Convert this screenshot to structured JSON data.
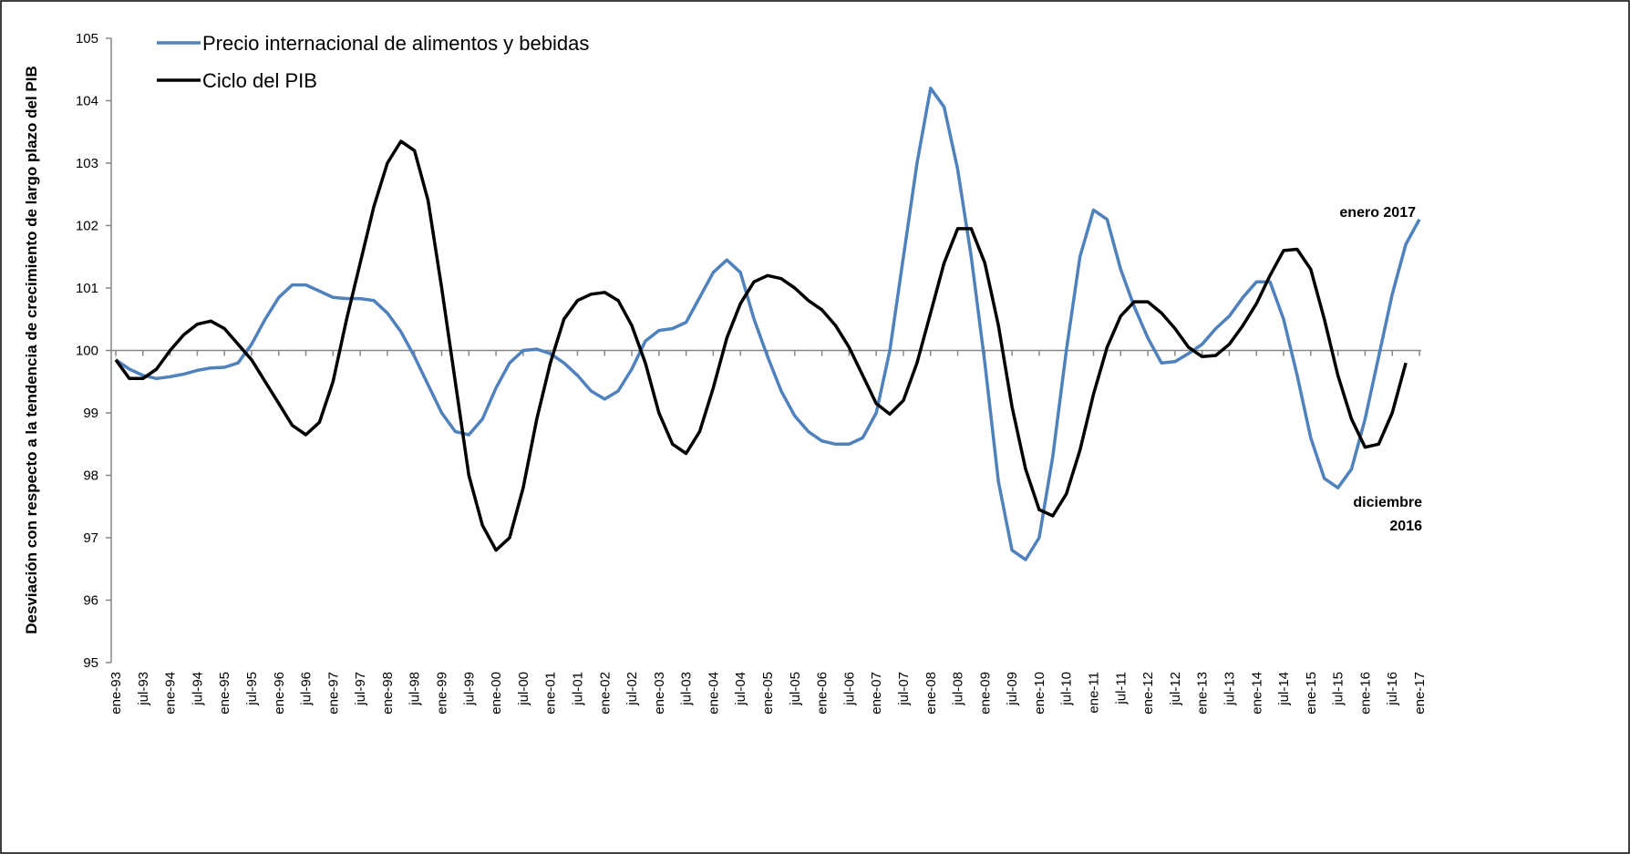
{
  "chart_data": {
    "type": "line",
    "ylabel": "Desviación con respecto a la tendencia de crecimiento de largo plazo del PIB",
    "categories": [
      "ene-93",
      null,
      "jul-93",
      null,
      "ene-94",
      null,
      "jul-94",
      null,
      "ene-95",
      null,
      "jul-95",
      null,
      "ene-96",
      null,
      "jul-96",
      null,
      "ene-97",
      null,
      "jul-97",
      null,
      "ene-98",
      null,
      "jul-98",
      null,
      "ene-99",
      null,
      "jul-99",
      null,
      "ene-00",
      null,
      "jul-00",
      null,
      "ene-01",
      null,
      "jul-01",
      null,
      "ene-02",
      null,
      "jul-02",
      null,
      "ene-03",
      null,
      "jul-03",
      null,
      "ene-04",
      null,
      "jul-04",
      null,
      "ene-05",
      null,
      "jul-05",
      null,
      "ene-06",
      null,
      "jul-06",
      null,
      "ene-07",
      null,
      "jul-07",
      null,
      "ene-08",
      null,
      "jul-08",
      null,
      "ene-09",
      null,
      "jul-09",
      null,
      "ene-10",
      null,
      "jul-10",
      null,
      "ene-11",
      null,
      "jul-11",
      null,
      "ene-12",
      null,
      "jul-12",
      null,
      "ene-13",
      null,
      "jul-13",
      null,
      "ene-14",
      null,
      "jul-14",
      null,
      "ene-15",
      null,
      "jul-15",
      null,
      "ene-16",
      null,
      "jul-16",
      null,
      "ene-17"
    ],
    "series": [
      {
        "name": "Precio internacional de alimentos y bebidas",
        "color": "#4f81bd",
        "values": [
          99.85,
          99.7,
          99.6,
          99.55,
          99.58,
          99.62,
          99.68,
          99.72,
          99.73,
          99.8,
          100.1,
          100.5,
          100.85,
          101.05,
          101.05,
          100.95,
          100.85,
          100.83,
          100.83,
          100.8,
          100.6,
          100.3,
          99.9,
          99.45,
          99.0,
          98.7,
          98.65,
          98.9,
          99.4,
          99.8,
          100.0,
          100.02,
          99.95,
          99.8,
          99.6,
          99.35,
          99.22,
          99.35,
          99.7,
          100.15,
          100.32,
          100.35,
          100.45,
          100.85,
          101.25,
          101.45,
          101.25,
          100.5,
          99.9,
          99.35,
          98.95,
          98.7,
          98.55,
          98.5,
          98.5,
          98.6,
          99.0,
          100.0,
          101.5,
          103.0,
          104.2,
          103.9,
          102.9,
          101.5,
          99.8,
          97.9,
          96.8,
          96.65,
          97.0,
          98.3,
          100.0,
          101.5,
          102.25,
          102.1,
          101.3,
          100.7,
          100.2,
          99.8,
          99.82,
          99.95,
          100.1,
          100.35,
          100.55,
          100.85,
          101.1,
          101.1,
          100.5,
          99.6,
          98.6,
          97.95,
          97.8,
          98.1,
          98.9,
          99.9,
          100.9,
          101.7,
          102.1
        ]
      },
      {
        "name": "Ciclo del PIB",
        "color": "#000000",
        "values": [
          99.85,
          99.55,
          99.55,
          99.7,
          100.0,
          100.25,
          100.42,
          100.47,
          100.35,
          100.1,
          99.85,
          99.5,
          99.15,
          98.8,
          98.65,
          98.85,
          99.5,
          100.5,
          101.4,
          102.3,
          103.0,
          103.35,
          103.2,
          102.4,
          101.0,
          99.5,
          98.0,
          97.2,
          96.8,
          97.0,
          97.8,
          98.9,
          99.8,
          100.5,
          100.8,
          100.9,
          100.93,
          100.8,
          100.4,
          99.8,
          99.0,
          98.5,
          98.35,
          98.7,
          99.4,
          100.2,
          100.75,
          101.1,
          101.2,
          101.15,
          101.0,
          100.8,
          100.65,
          100.4,
          100.05,
          99.6,
          99.15,
          98.98,
          99.2,
          99.8,
          100.6,
          101.4,
          101.95,
          101.95,
          101.4,
          100.4,
          99.1,
          98.1,
          97.45,
          97.35,
          97.7,
          98.4,
          99.3,
          100.05,
          100.55,
          100.78,
          100.78,
          100.6,
          100.35,
          100.05,
          99.9,
          99.92,
          100.1,
          100.4,
          100.75,
          101.2,
          101.6,
          101.62,
          101.3,
          100.5,
          99.6,
          98.9,
          98.45,
          98.5,
          99.0,
          99.8,
          null
        ]
      }
    ],
    "annotations": [
      {
        "text": "enero 2017",
        "color": "#4f81bd"
      },
      {
        "text": "diciembre"
      },
      {
        "text": "2016"
      }
    ],
    "ylim": [
      95,
      105
    ],
    "yticks": [
      95,
      96,
      97,
      98,
      99,
      100,
      101,
      102,
      103,
      104,
      105
    ],
    "xaxis_crosses": 100,
    "grid": false,
    "legend": "upper left"
  }
}
